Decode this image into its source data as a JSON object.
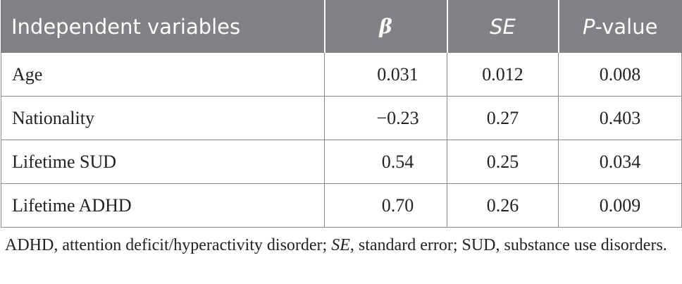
{
  "table": {
    "headers": {
      "col1": "Independent variables",
      "col2": "β",
      "col3": "SE",
      "col4_italic": "P",
      "col4_rest": "-value"
    },
    "rows": [
      {
        "variable": "Age",
        "beta": "0.031",
        "se": "0.012",
        "p": "0.008"
      },
      {
        "variable": "Nationality",
        "beta": "−0.23",
        "se": "0.27",
        "p": "0.403"
      },
      {
        "variable": "Lifetime SUD",
        "beta": "0.54",
        "se": "0.25",
        "p": "0.034"
      },
      {
        "variable": "Lifetime ADHD",
        "beta": "0.70",
        "se": "0.26",
        "p": "0.009"
      }
    ]
  },
  "footnote": {
    "part1": "ADHD, attention deficit/hyperactivity disorder; ",
    "se_abbrev": "SE",
    "part2": ", standard error; SUD, substance use disorders."
  },
  "colors": {
    "header_bg": "#808285",
    "header_text": "#ffffff",
    "body_text": "#222222",
    "border": "#8a8a8a"
  }
}
